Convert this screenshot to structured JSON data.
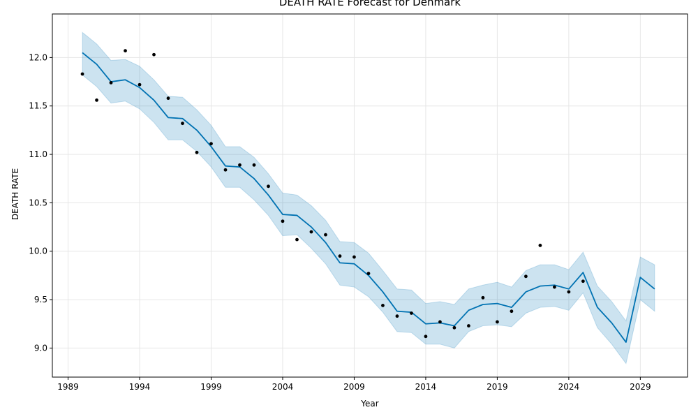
{
  "chart_data": {
    "type": "line",
    "title": "DEATH RATE Forecast for Denmark",
    "xlabel": "Year",
    "ylabel": "DEATH RATE",
    "xlim": [
      1987.9,
      2032.3
    ],
    "ylim": [
      8.7,
      12.45
    ],
    "x_ticks": [
      1989,
      1994,
      1999,
      2004,
      2009,
      2014,
      2019,
      2024,
      2029
    ],
    "y_ticks": [
      9.0,
      9.5,
      10.0,
      10.5,
      11.0,
      11.5,
      12.0
    ],
    "y_tick_labels": [
      "9.0",
      "9.5",
      "10.0",
      "10.5",
      "11.0",
      "11.5",
      "12.0"
    ],
    "grid": true,
    "colors": {
      "forecast_line": "#0072B2",
      "interval_fill": "#0072B2",
      "observed_points": "#000000"
    },
    "observed": {
      "x": [
        1990,
        1991,
        1992,
        1993,
        1994,
        1995,
        1996,
        1997,
        1998,
        1999,
        2000,
        2001,
        2002,
        2003,
        2004,
        2005,
        2006,
        2007,
        2008,
        2009,
        2010,
        2011,
        2012,
        2013,
        2014,
        2015,
        2016,
        2017,
        2018,
        2019,
        2020,
        2021,
        2022,
        2023,
        2024,
        2025
      ],
      "y": [
        11.83,
        11.56,
        11.74,
        12.07,
        11.72,
        12.03,
        11.58,
        11.32,
        11.02,
        11.11,
        10.84,
        10.89,
        10.89,
        10.67,
        10.31,
        10.12,
        10.2,
        10.17,
        9.95,
        9.94,
        9.77,
        9.44,
        9.33,
        9.36,
        9.12,
        9.27,
        9.21,
        9.23,
        9.52,
        9.27,
        9.38,
        9.74,
        10.06,
        9.63,
        9.58,
        9.69
      ]
    },
    "forecast": {
      "x": [
        1990,
        1991,
        1992,
        1993,
        1994,
        1995,
        1996,
        1997,
        1998,
        1999,
        2000,
        2001,
        2002,
        2003,
        2004,
        2005,
        2006,
        2007,
        2008,
        2009,
        2010,
        2011,
        2012,
        2013,
        2014,
        2015,
        2016,
        2017,
        2018,
        2019,
        2020,
        2021,
        2022,
        2023,
        2024,
        2025,
        2026,
        2027,
        2028,
        2029,
        2030
      ],
      "yhat": [
        12.05,
        11.93,
        11.75,
        11.77,
        11.69,
        11.56,
        11.38,
        11.37,
        11.25,
        11.08,
        10.88,
        10.87,
        10.75,
        10.58,
        10.38,
        10.37,
        10.25,
        10.09,
        9.88,
        9.87,
        9.75,
        9.58,
        9.38,
        9.37,
        9.25,
        9.26,
        9.23,
        9.39,
        9.45,
        9.46,
        9.42,
        9.58,
        9.64,
        9.65,
        9.61,
        9.78,
        9.42,
        9.26,
        9.06,
        9.73,
        9.61
      ],
      "lower": [
        11.82,
        11.7,
        11.53,
        11.55,
        11.47,
        11.33,
        11.15,
        11.15,
        11.03,
        10.87,
        10.66,
        10.66,
        10.53,
        10.37,
        10.16,
        10.17,
        10.03,
        9.87,
        9.65,
        9.63,
        9.53,
        9.37,
        9.17,
        9.16,
        9.04,
        9.04,
        9.0,
        9.17,
        9.23,
        9.24,
        9.22,
        9.36,
        9.42,
        9.43,
        9.39,
        9.57,
        9.21,
        9.04,
        8.84,
        9.5,
        9.38
      ],
      "upper": [
        12.26,
        12.14,
        11.97,
        11.98,
        11.91,
        11.77,
        11.6,
        11.59,
        11.46,
        11.3,
        11.08,
        11.08,
        10.97,
        10.8,
        10.6,
        10.58,
        10.47,
        10.32,
        10.1,
        10.09,
        9.98,
        9.8,
        9.61,
        9.6,
        9.46,
        9.48,
        9.45,
        9.61,
        9.65,
        9.68,
        9.63,
        9.8,
        9.86,
        9.86,
        9.81,
        9.99,
        9.64,
        9.48,
        9.28,
        9.94,
        9.86
      ]
    }
  }
}
